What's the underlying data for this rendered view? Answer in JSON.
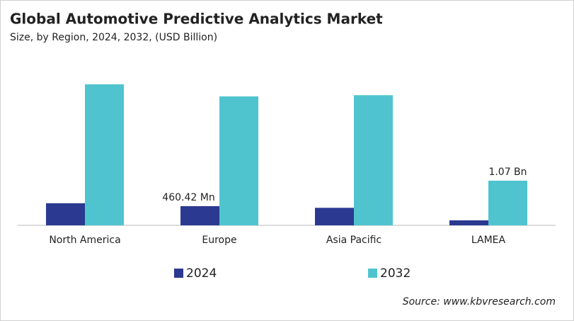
{
  "chart_data": {
    "type": "bar",
    "title": "Global Automotive Predictive Analytics Market",
    "subtitle": "Size, by Region, 2024, 2032, (USD Billion)",
    "categories": [
      "North America",
      "Europe",
      "Asia Pacific",
      "LAMEA"
    ],
    "series": [
      {
        "name": "2024",
        "color": "#2b3990",
        "values": [
          0.53,
          0.46042,
          0.42,
          0.12
        ],
        "value_labels": [
          null,
          "460.42 Mn",
          null,
          null
        ]
      },
      {
        "name": "2032",
        "color": "#4fc4cf",
        "values": [
          3.38,
          3.09,
          3.12,
          1.07
        ],
        "value_labels": [
          null,
          null,
          null,
          "1.07 Bn"
        ]
      }
    ],
    "source": "Source: www.kbvresearch.com"
  }
}
